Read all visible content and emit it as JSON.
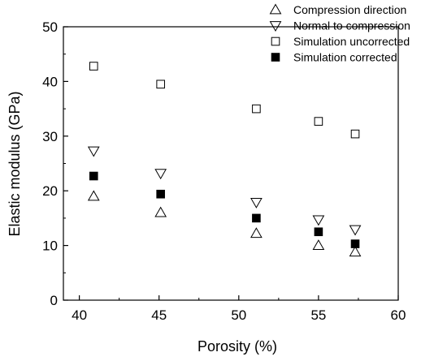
{
  "chart_data": {
    "type": "scatter",
    "xlabel": "Porosity (%)",
    "ylabel": "Elastic modulus (GPa)",
    "xlim": [
      39,
      60
    ],
    "ylim": [
      0,
      50
    ],
    "x_ticks": [
      40,
      45,
      50,
      55,
      60
    ],
    "x_tick_labels": [
      "40",
      "45",
      "50",
      "55",
      "60"
    ],
    "y_ticks": [
      0,
      10,
      20,
      30,
      40,
      50
    ],
    "y_tick_labels": [
      "0",
      "10",
      "20",
      "30",
      "40",
      "50"
    ],
    "grid": false,
    "legend_position": "top-right",
    "series": [
      {
        "name": "Compression direction",
        "marker": "triangle-up",
        "filled": false,
        "points": [
          [
            40.9,
            19.0
          ],
          [
            45.1,
            16.0
          ],
          [
            51.1,
            12.2
          ],
          [
            55.0,
            10.0
          ],
          [
            57.3,
            8.8
          ]
        ]
      },
      {
        "name": "Normal to compression",
        "marker": "triangle-down",
        "filled": false,
        "points": [
          [
            40.9,
            27.3
          ],
          [
            45.1,
            23.2
          ],
          [
            51.1,
            17.9
          ],
          [
            55.0,
            14.7
          ],
          [
            57.3,
            12.9
          ]
        ]
      },
      {
        "name": "Simulation uncorrected",
        "marker": "square",
        "filled": false,
        "points": [
          [
            40.9,
            42.8
          ],
          [
            45.1,
            39.5
          ],
          [
            51.1,
            35.0
          ],
          [
            55.0,
            32.7
          ],
          [
            57.3,
            30.4
          ]
        ]
      },
      {
        "name": "Simulation corrected",
        "marker": "square",
        "filled": true,
        "points": [
          [
            40.9,
            22.7
          ],
          [
            45.1,
            19.4
          ],
          [
            51.1,
            15.0
          ],
          [
            55.0,
            12.5
          ],
          [
            57.3,
            10.3
          ]
        ]
      }
    ]
  }
}
